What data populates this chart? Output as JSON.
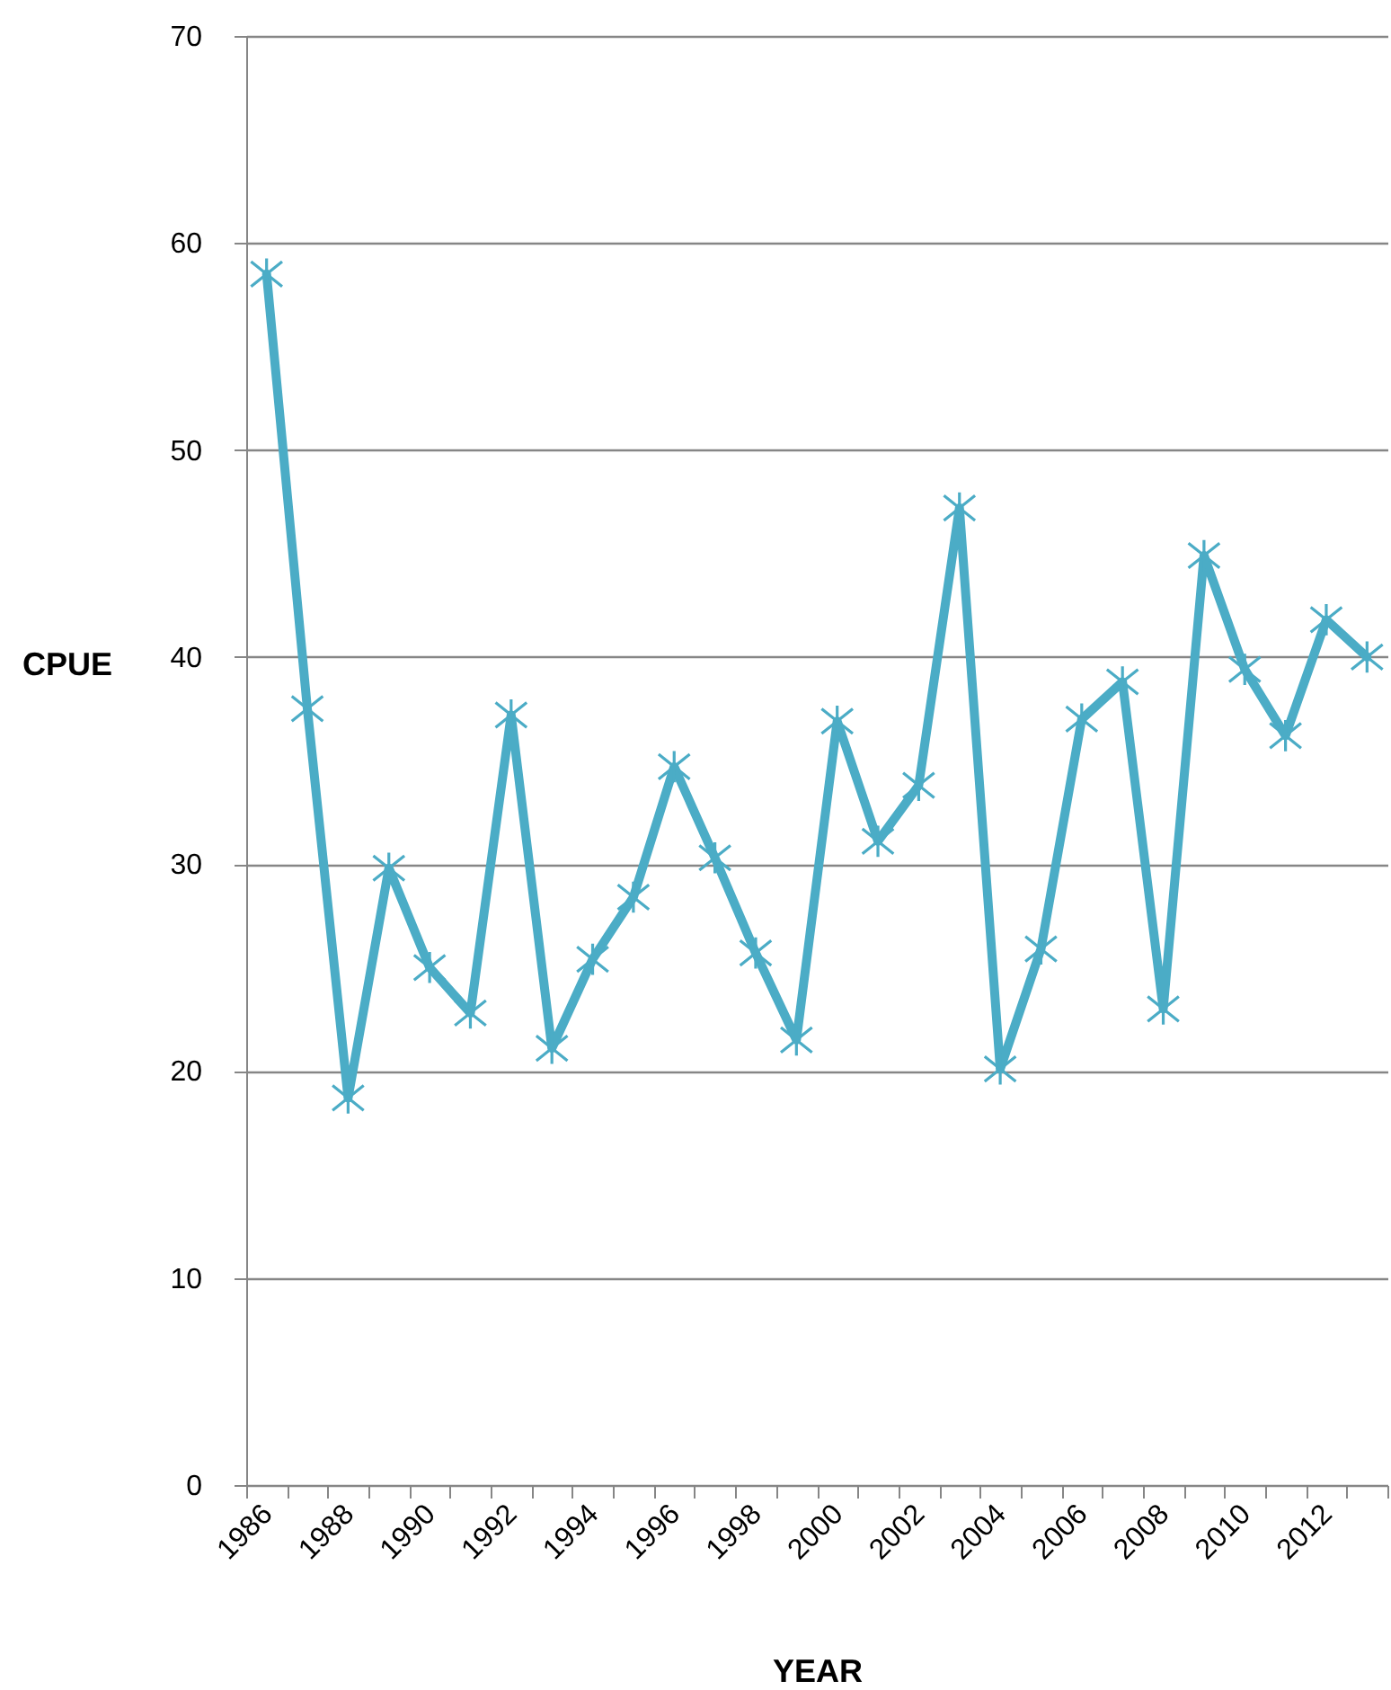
{
  "chart_data": {
    "type": "line",
    "xlabel": "YEAR",
    "ylabel": "CPUE",
    "categories": [
      "1986",
      null,
      "1988",
      null,
      "1990",
      null,
      "1992",
      null,
      "1994",
      null,
      "1996",
      null,
      "1998",
      null,
      "2000",
      null,
      "2002",
      null,
      "2004",
      null,
      "2006",
      null,
      "2008",
      null,
      "2010",
      null,
      "2012",
      null
    ],
    "series": [
      {
        "color": "#4bacc6",
        "values": [
          58.5,
          37.5,
          18.7,
          29.8,
          25.0,
          22.8,
          37.2,
          21.1,
          25.4,
          28.4,
          34.7,
          30.3,
          25.7,
          21.5,
          36.9,
          31.1,
          33.8,
          47.2,
          20.1,
          25.9,
          37.0,
          38.8,
          23.0,
          44.9,
          39.4,
          36.2,
          41.8,
          40.0
        ]
      }
    ],
    "ylim": [
      0,
      70
    ],
    "yticks": [
      0,
      10,
      20,
      30,
      40,
      50,
      60,
      70
    ],
    "grid": "y",
    "marker": "cross",
    "line_style": "solid"
  }
}
